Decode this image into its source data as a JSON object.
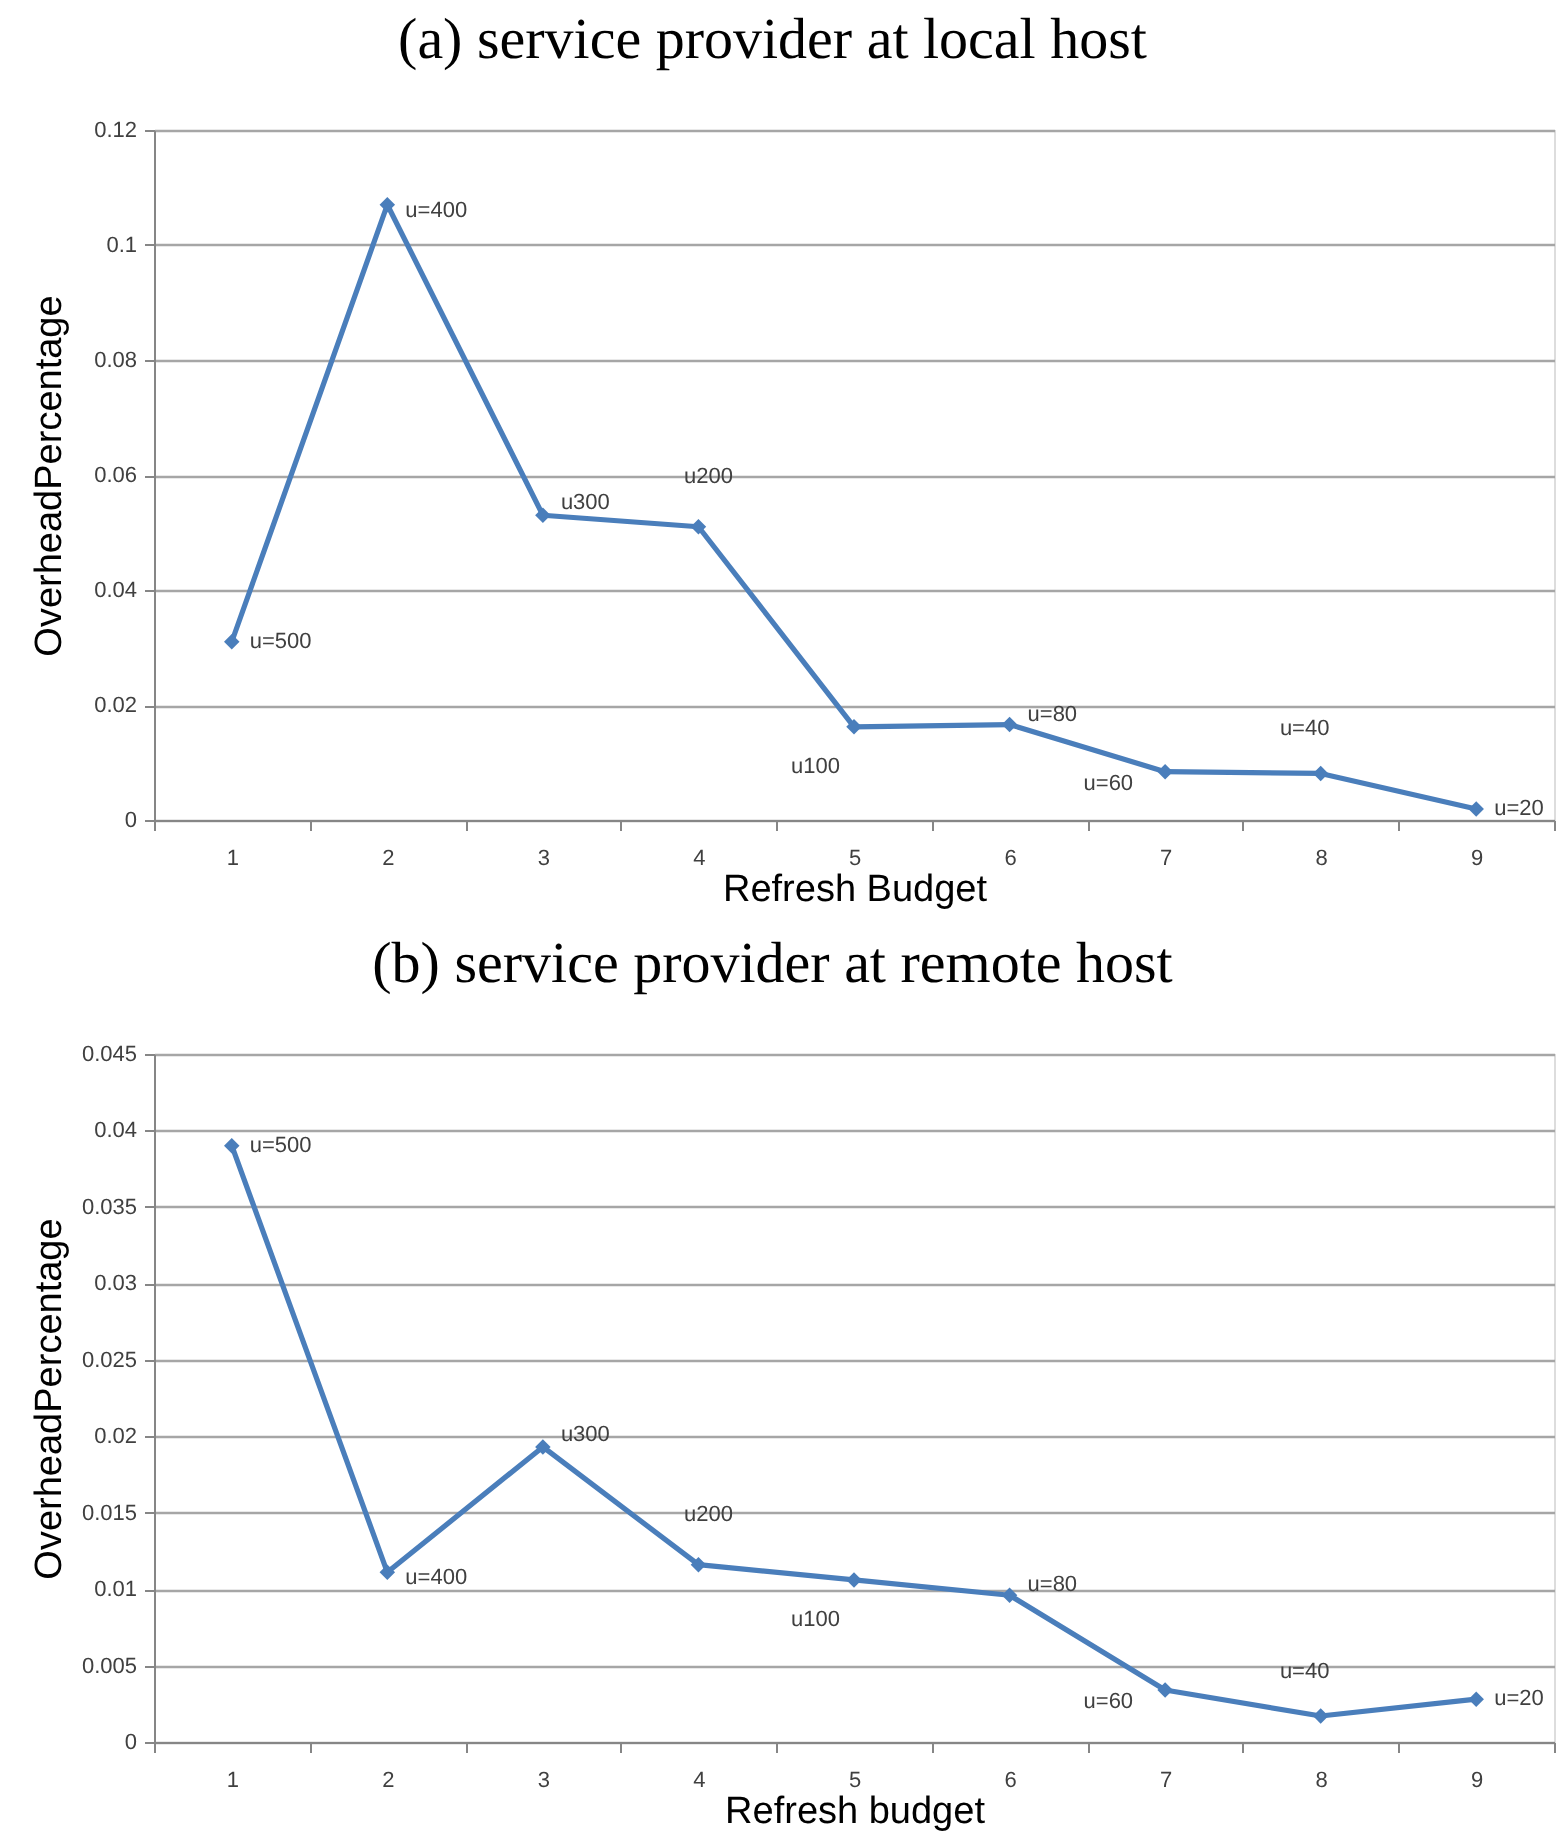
{
  "chart_data": [
    {
      "type": "line",
      "title": "(a) service provider at local host",
      "xlabel": "Refresh Budget",
      "ylabel": "OverheadPercentage",
      "categories": [
        "1",
        "2",
        "3",
        "4",
        "5",
        "6",
        "7",
        "8",
        "9"
      ],
      "series": [
        {
          "color": "#4a7ebb",
          "values": [
            0.031,
            0.107,
            0.053,
            0.051,
            0.0162,
            0.0166,
            0.0084,
            0.0081,
            0.0019
          ]
        }
      ],
      "ylim": [
        0,
        0.12
      ],
      "yticks": [
        0,
        0.02,
        0.04,
        0.06,
        0.08,
        0.1,
        0.12
      ],
      "grid": "y",
      "marker": "diamond",
      "line_style": "solid",
      "annotations": [
        {
          "text": "u=500",
          "x": "1",
          "y": 0.031
        },
        {
          "text": "u=400",
          "x": "2",
          "y": 0.107
        },
        {
          "text": "u300",
          "x": "3",
          "y": 0.053
        },
        {
          "text": "u200",
          "x": "4",
          "y": 0.051
        },
        {
          "text": "u100",
          "x": "5",
          "y": 0.0162
        },
        {
          "text": "u=80",
          "x": "6",
          "y": 0.0166
        },
        {
          "text": "u=60",
          "x": "7",
          "y": 0.0084
        },
        {
          "text": "u=40",
          "x": "8",
          "y": 0.0081
        },
        {
          "text": "u=20",
          "x": "9",
          "y": 0.0019
        }
      ]
    },
    {
      "type": "line",
      "title": "(b) service provider at remote host",
      "xlabel": "Refresh budget",
      "ylabel": "OverheadPercentage",
      "categories": [
        "1",
        "2",
        "3",
        "4",
        "5",
        "6",
        "7",
        "8",
        "9"
      ],
      "series": [
        {
          "color": "#4a7ebb",
          "values": [
            0.039,
            0.0111,
            0.0193,
            0.0116,
            0.0106,
            0.0096,
            0.0034,
            0.0017,
            0.0028
          ]
        }
      ],
      "ylim": [
        0,
        0.045
      ],
      "yticks": [
        0,
        0.005,
        0.01,
        0.015,
        0.02,
        0.025,
        0.03,
        0.035,
        0.04,
        0.045
      ],
      "grid": "y",
      "marker": "diamond",
      "line_style": "solid",
      "annotations": [
        {
          "text": "u=500",
          "x": "1",
          "y": 0.039
        },
        {
          "text": "u=400",
          "x": "2",
          "y": 0.0111
        },
        {
          "text": "u300",
          "x": "3",
          "y": 0.0193
        },
        {
          "text": "u200",
          "x": "4",
          "y": 0.0116
        },
        {
          "text": "u100",
          "x": "5",
          "y": 0.0106
        },
        {
          "text": "u=80",
          "x": "6",
          "y": 0.0096
        },
        {
          "text": "u=60",
          "x": "7",
          "y": 0.0034
        },
        {
          "text": "u=40",
          "x": "8",
          "y": 0.0017
        },
        {
          "text": "u=20",
          "x": "9",
          "y": 0.0028
        }
      ]
    }
  ]
}
